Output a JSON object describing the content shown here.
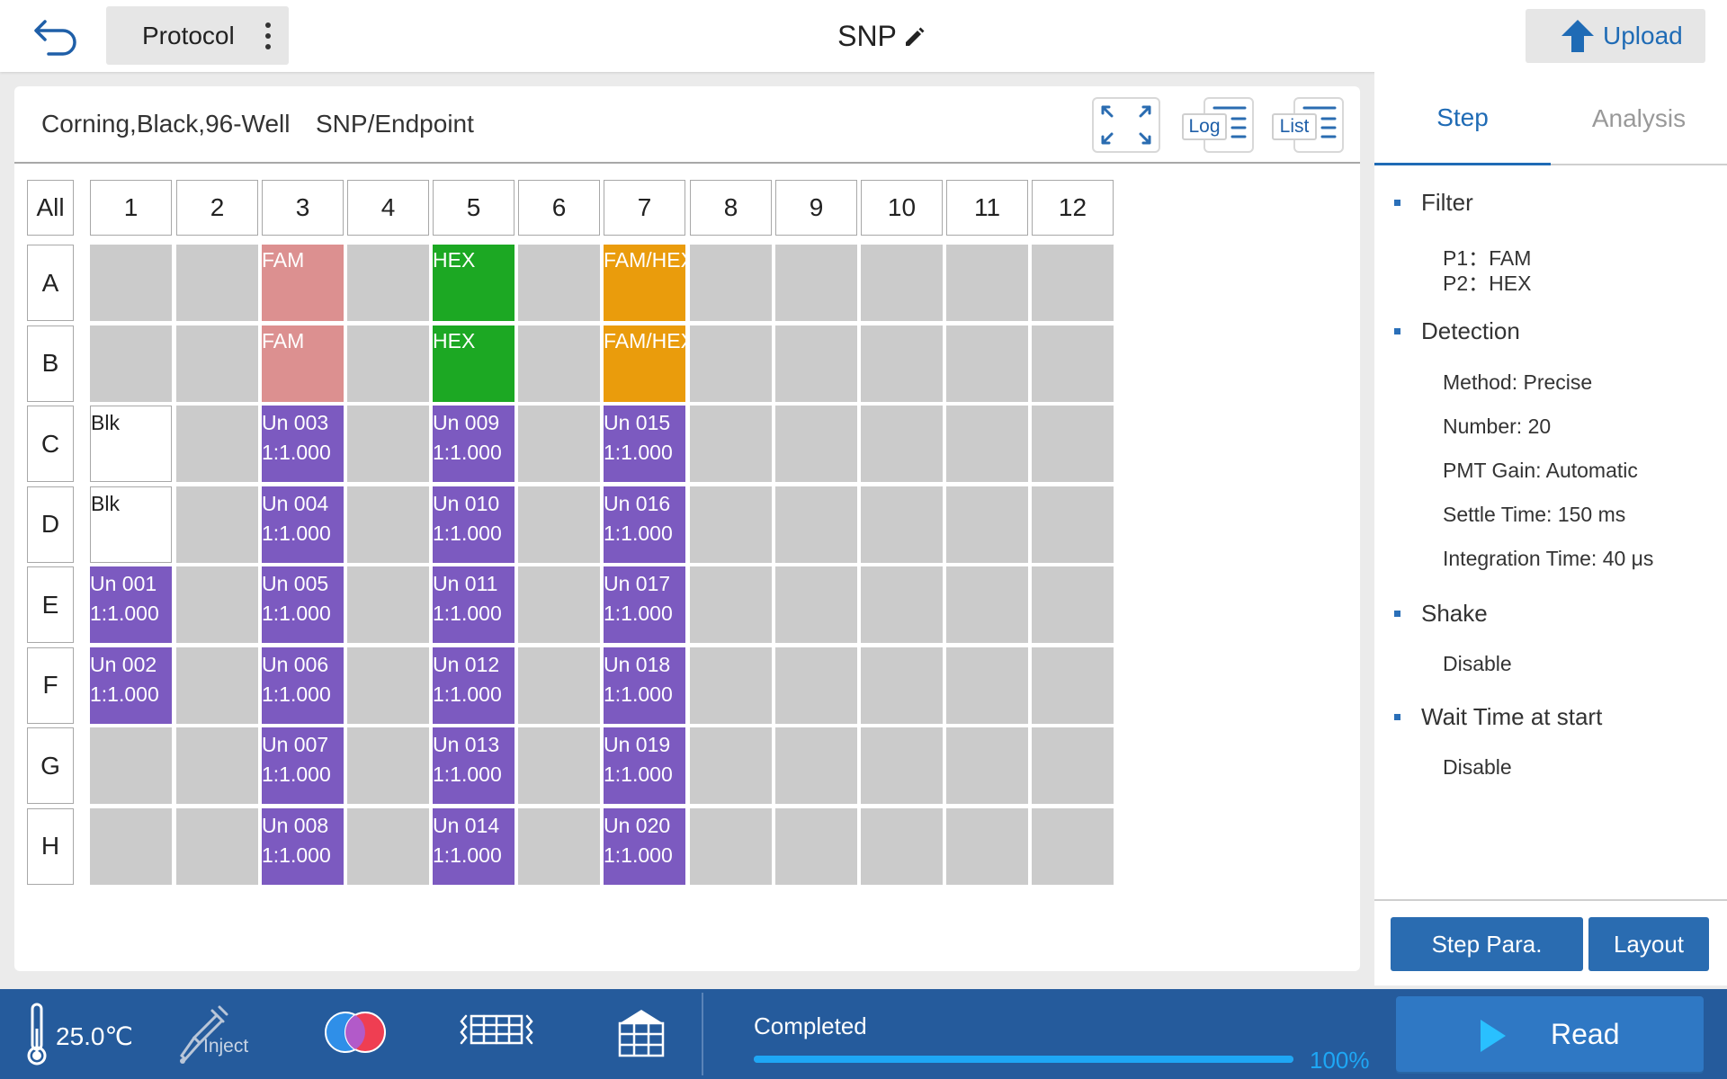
{
  "header": {
    "protocol_label": "Protocol",
    "title": "SNP",
    "upload_label": "Upload"
  },
  "plate": {
    "type": "Corning,Black,96-Well",
    "mode": "SNP/Endpoint",
    "log_label": "Log",
    "list_label": "List",
    "all_label": "All",
    "columns": [
      "1",
      "2",
      "3",
      "4",
      "5",
      "6",
      "7",
      "8",
      "9",
      "10",
      "11",
      "12"
    ],
    "rows": [
      "A",
      "B",
      "C",
      "D",
      "E",
      "F",
      "G",
      "H"
    ],
    "colors": {
      "empty": "#cbcbcb",
      "FAM": "#dc9090",
      "HEX": "#1ca823",
      "FAM/HEX": "#ea9c0c",
      "sample": "#7c5ac0",
      "blank": "#ffffff"
    },
    "wells": [
      {
        "row": 0,
        "col": 2,
        "type": "FAM",
        "l1": "FAM"
      },
      {
        "row": 0,
        "col": 4,
        "type": "HEX",
        "l1": "HEX"
      },
      {
        "row": 0,
        "col": 6,
        "type": "FAM/HEX",
        "l1": "FAM/HEX"
      },
      {
        "row": 1,
        "col": 2,
        "type": "FAM",
        "l1": "FAM"
      },
      {
        "row": 1,
        "col": 4,
        "type": "HEX",
        "l1": "HEX"
      },
      {
        "row": 1,
        "col": 6,
        "type": "FAM/HEX",
        "l1": "FAM/HEX"
      },
      {
        "row": 2,
        "col": 0,
        "type": "blank",
        "l1": "Blk"
      },
      {
        "row": 2,
        "col": 2,
        "type": "sample",
        "l1": "Un 003",
        "l2": "1:1.000"
      },
      {
        "row": 2,
        "col": 4,
        "type": "sample",
        "l1": "Un 009",
        "l2": "1:1.000"
      },
      {
        "row": 2,
        "col": 6,
        "type": "sample",
        "l1": "Un 015",
        "l2": "1:1.000"
      },
      {
        "row": 3,
        "col": 0,
        "type": "blank",
        "l1": "Blk"
      },
      {
        "row": 3,
        "col": 2,
        "type": "sample",
        "l1": "Un 004",
        "l2": "1:1.000"
      },
      {
        "row": 3,
        "col": 4,
        "type": "sample",
        "l1": "Un 010",
        "l2": "1:1.000"
      },
      {
        "row": 3,
        "col": 6,
        "type": "sample",
        "l1": "Un 016",
        "l2": "1:1.000"
      },
      {
        "row": 4,
        "col": 0,
        "type": "sample",
        "l1": "Un 001",
        "l2": "1:1.000"
      },
      {
        "row": 4,
        "col": 2,
        "type": "sample",
        "l1": "Un 005",
        "l2": "1:1.000"
      },
      {
        "row": 4,
        "col": 4,
        "type": "sample",
        "l1": "Un 011",
        "l2": "1:1.000"
      },
      {
        "row": 4,
        "col": 6,
        "type": "sample",
        "l1": "Un 017",
        "l2": "1:1.000"
      },
      {
        "row": 5,
        "col": 0,
        "type": "sample",
        "l1": "Un 002",
        "l2": "1:1.000"
      },
      {
        "row": 5,
        "col": 2,
        "type": "sample",
        "l1": "Un 006",
        "l2": "1:1.000"
      },
      {
        "row": 5,
        "col": 4,
        "type": "sample",
        "l1": "Un 012",
        "l2": "1:1.000"
      },
      {
        "row": 5,
        "col": 6,
        "type": "sample",
        "l1": "Un 018",
        "l2": "1:1.000"
      },
      {
        "row": 6,
        "col": 2,
        "type": "sample",
        "l1": "Un 007",
        "l2": "1:1.000"
      },
      {
        "row": 6,
        "col": 4,
        "type": "sample",
        "l1": "Un 013",
        "l2": "1:1.000"
      },
      {
        "row": 6,
        "col": 6,
        "type": "sample",
        "l1": "Un 019",
        "l2": "1:1.000"
      },
      {
        "row": 7,
        "col": 2,
        "type": "sample",
        "l1": "Un 008",
        "l2": "1:1.000"
      },
      {
        "row": 7,
        "col": 4,
        "type": "sample",
        "l1": "Un 014",
        "l2": "1:1.000"
      },
      {
        "row": 7,
        "col": 6,
        "type": "sample",
        "l1": "Un 020",
        "l2": "1:1.000"
      }
    ]
  },
  "right_panel": {
    "tabs": {
      "step": "Step",
      "analysis": "Analysis"
    },
    "filter": {
      "title": "Filter",
      "p1": "P1：FAM",
      "p2": "P2：HEX"
    },
    "detection": {
      "title": "Detection",
      "method": "Method: Precise",
      "number": "Number: 20",
      "pmt_gain": "PMT Gain: Automatic",
      "settle_time": "Settle Time: 150 ms",
      "integration_time": "Integration Time: 40 μs"
    },
    "shake": {
      "title": "Shake",
      "value": "Disable"
    },
    "wait": {
      "title": "Wait Time at start",
      "value": "Disable"
    },
    "step_para_label": "Step Para.",
    "layout_label": "Layout"
  },
  "footer": {
    "temperature": "25.0℃",
    "inject_label": "Inject",
    "status": "Completed",
    "progress": 100,
    "progress_label": "100%",
    "read_label": "Read"
  },
  "icons": {
    "back": "back-arrow-icon",
    "menu": "kebab-menu-icon",
    "edit": "pencil-icon",
    "upload": "upload-arrow-icon",
    "expand": "expand-icon",
    "thermometer": "thermometer-icon",
    "inject": "pipette-icon",
    "filter": "color-filter-icon",
    "plate_shake": "plate-shake-icon",
    "plate": "plate-icon",
    "play": "play-icon"
  }
}
